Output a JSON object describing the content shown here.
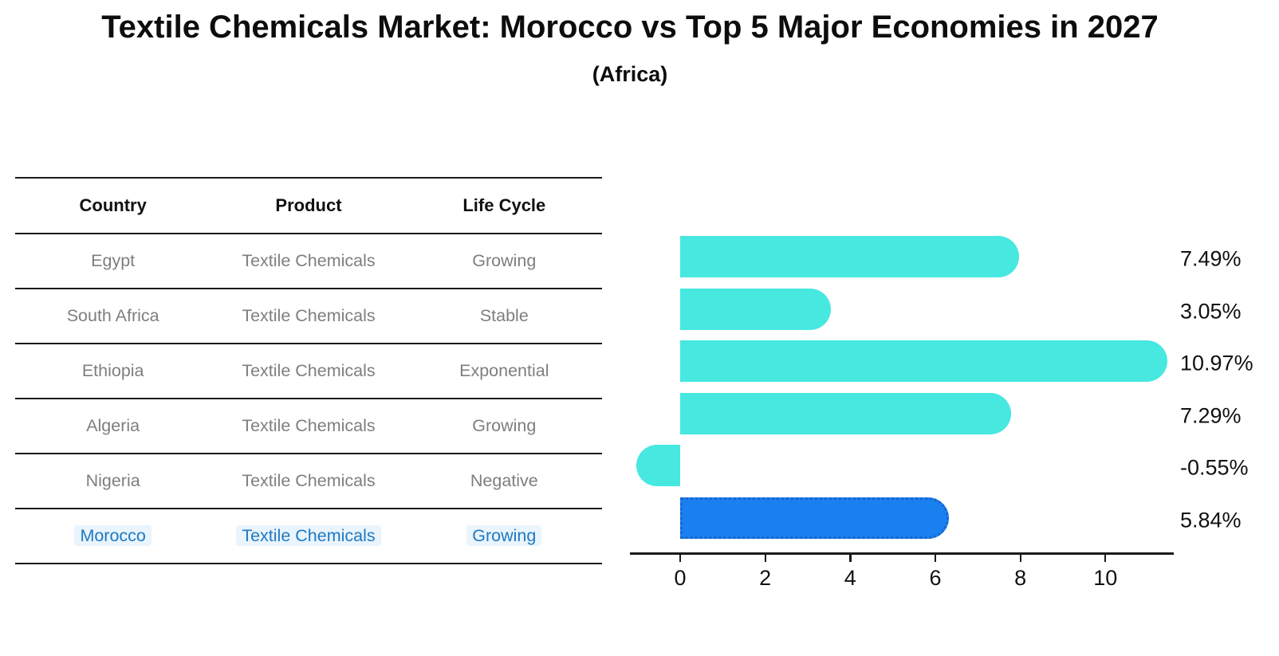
{
  "header": {
    "title": "Textile Chemicals Market: Morocco vs Top 5 Major Economies in 2027",
    "subtitle": "(Africa)"
  },
  "table": {
    "columns": {
      "country": "Country",
      "product": "Product",
      "life_cycle": "Life Cycle"
    },
    "rows": [
      {
        "country": "Egypt",
        "product": "Textile Chemicals",
        "life_cycle": "Growing"
      },
      {
        "country": "South Africa",
        "product": "Textile Chemicals",
        "life_cycle": "Stable"
      },
      {
        "country": "Ethiopia",
        "product": "Textile Chemicals",
        "life_cycle": "Exponential"
      },
      {
        "country": "Algeria",
        "product": "Textile Chemicals",
        "life_cycle": "Growing"
      },
      {
        "country": "Nigeria",
        "product": "Textile Chemicals",
        "life_cycle": "Negative"
      },
      {
        "country": "Morocco",
        "product": "Textile Chemicals",
        "life_cycle": "Growing"
      }
    ],
    "highlighted_row": "Morocco"
  },
  "chart_data": {
    "type": "bar",
    "orientation": "horizontal",
    "categories": [
      "Egypt",
      "South Africa",
      "Ethiopia",
      "Algeria",
      "Nigeria",
      "Morocco"
    ],
    "values": [
      7.49,
      3.05,
      10.97,
      7.29,
      -0.55,
      5.84
    ],
    "value_labels": [
      "7.49%",
      "3.05%",
      "10.97%",
      "7.29%",
      "-0.55%",
      "5.84%"
    ],
    "x_ticks": [
      0,
      2,
      4,
      6,
      8,
      10
    ],
    "xlim": [
      -1.2,
      11.6
    ],
    "grid": false,
    "legend": "none",
    "title": "Textile Chemicals Market: Morocco vs Top 5 Major Economies in 2027 (Africa)",
    "xlabel": "",
    "ylabel": "",
    "bar_color": "#46E8E0",
    "highlight_color": "#1B80EF",
    "highlight_index": 5,
    "highlight_style": "dotted-border"
  },
  "colors": {
    "accent_cyan": "#46E8E0",
    "accent_blue": "#1B80EF",
    "table_text_gray": "#7e7e7e",
    "highlight_text_blue": "#1f79c2",
    "line_black": "#1a1a1a"
  }
}
